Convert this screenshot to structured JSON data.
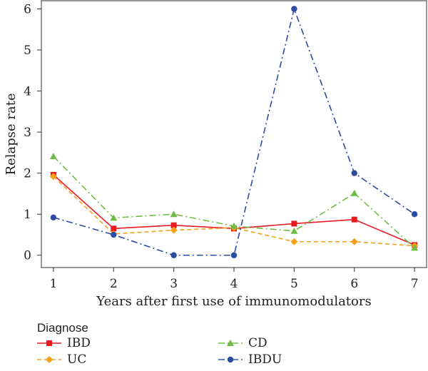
{
  "chart_data": {
    "type": "line",
    "title": "",
    "xlabel": "Years after first use of immunomodulators",
    "ylabel": "Relapse rate",
    "x": [
      1,
      2,
      3,
      4,
      5,
      6,
      7
    ],
    "x_ticks": [
      "1",
      "2",
      "3",
      "4",
      "5",
      "6",
      "7"
    ],
    "y_ticks": [
      "0",
      "1",
      "2",
      "3",
      "4",
      "5",
      "6"
    ],
    "xlim": [
      0.8,
      7.2
    ],
    "ylim": [
      -0.3,
      6.2
    ],
    "grid": false,
    "legend": {
      "title": "Diagnose",
      "placement": "bottom-left"
    },
    "series": [
      {
        "name": "IBD",
        "color": "#e8191f",
        "marker": "square",
        "dash": "solid",
        "values": [
          1.96,
          0.65,
          0.73,
          0.65,
          0.77,
          0.87,
          0.25
        ]
      },
      {
        "name": "UC",
        "color": "#f5a21a",
        "marker": "diamond",
        "dash": "dashed",
        "values": [
          1.92,
          0.52,
          0.61,
          0.67,
          0.33,
          0.33,
          0.23
        ]
      },
      {
        "name": "CD",
        "color": "#6fbe44",
        "marker": "triangle",
        "dash": "dashdot",
        "values": [
          2.41,
          0.91,
          1.0,
          0.71,
          0.59,
          1.51,
          0.18
        ]
      },
      {
        "name": "IBDU",
        "color": "#2c4ca3",
        "marker": "circle",
        "dash": "dashdot",
        "values": [
          0.92,
          0.5,
          0.0,
          0.0,
          6.0,
          2.0,
          1.0
        ]
      }
    ]
  }
}
